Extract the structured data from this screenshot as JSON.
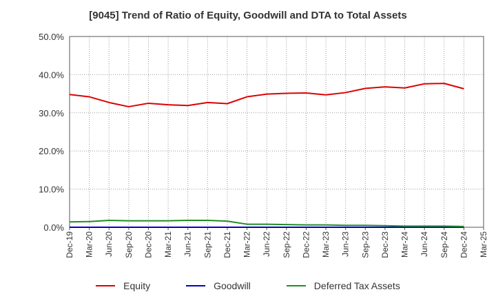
{
  "chart_data": {
    "type": "line",
    "title": "[9045]  Trend of Ratio of Equity, Goodwill and DTA to Total Assets",
    "xlabel": "",
    "ylabel": "",
    "ylim": [
      0,
      50
    ],
    "yticks": [
      0,
      10,
      20,
      30,
      40,
      50
    ],
    "ytick_labels": [
      "0.0%",
      "10.0%",
      "20.0%",
      "30.0%",
      "40.0%",
      "50.0%"
    ],
    "x": [
      "Dec-19",
      "Mar-20",
      "Jun-20",
      "Sep-20",
      "Dec-20",
      "Mar-21",
      "Jun-21",
      "Sep-21",
      "Dec-21",
      "Mar-22",
      "Jun-22",
      "Sep-22",
      "Dec-22",
      "Mar-23",
      "Jun-23",
      "Sep-23",
      "Dec-23",
      "Mar-24",
      "Jun-24",
      "Sep-24",
      "Dec-24",
      "Mar-25"
    ],
    "grid": true,
    "legend_position": "bottom",
    "series": [
      {
        "name": "Equity",
        "color": "#dd0000",
        "values": [
          34.8,
          34.2,
          32.7,
          31.6,
          32.5,
          32.1,
          31.9,
          32.7,
          32.4,
          34.2,
          34.9,
          35.1,
          35.2,
          34.7,
          35.3,
          36.4,
          36.8,
          36.5,
          37.6,
          37.7,
          36.3,
          null
        ]
      },
      {
        "name": "Goodwill",
        "color": "#0000cc",
        "values": [
          0,
          0,
          0,
          0,
          0,
          0,
          0,
          0,
          0,
          0,
          0,
          0,
          0,
          0,
          0,
          0,
          0,
          0,
          0,
          0,
          0,
          null
        ]
      },
      {
        "name": "Deferred Tax Assets",
        "color": "#228b22",
        "values": [
          1.4,
          1.5,
          1.8,
          1.7,
          1.7,
          1.7,
          1.8,
          1.8,
          1.6,
          0.8,
          0.8,
          0.7,
          0.6,
          0.6,
          0.5,
          0.5,
          0.4,
          0.3,
          0.3,
          0.3,
          0.2,
          null
        ]
      }
    ]
  }
}
